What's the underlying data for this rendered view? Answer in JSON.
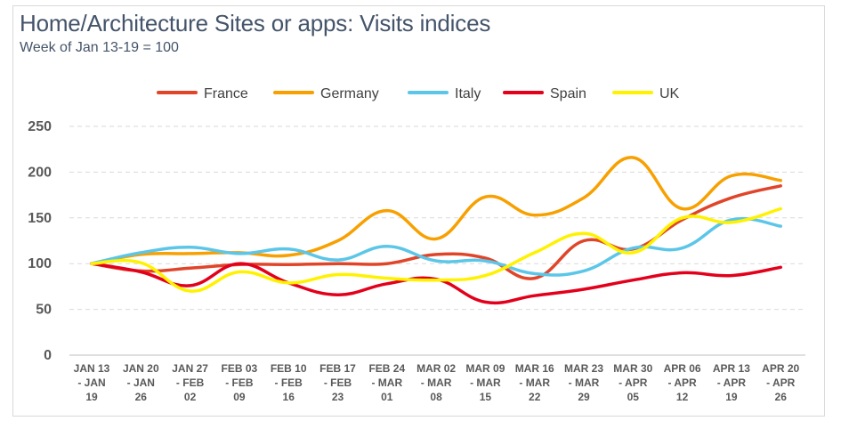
{
  "title": "Home/Architecture Sites or apps: Visits indices",
  "subtitle": "Week of Jan 13-19 = 100",
  "chart_data": {
    "type": "line",
    "title": "Home/Architecture Sites or apps: Visits indices",
    "subtitle": "Week of Jan 13-19 = 100",
    "xlabel": "",
    "ylabel": "",
    "ylim": [
      0,
      250
    ],
    "yticks": [
      0,
      50,
      100,
      150,
      200,
      250
    ],
    "grid": "horizontal dashed",
    "legend_position": "top",
    "smooth": true,
    "categories": [
      [
        "JAN 13",
        "- JAN",
        "19"
      ],
      [
        "JAN 20",
        "- JAN",
        "26"
      ],
      [
        "JAN 27",
        "- FEB",
        "02"
      ],
      [
        "FEB 03",
        "- FEB",
        "09"
      ],
      [
        "FEB 10",
        "- FEB",
        "16"
      ],
      [
        "FEB 17",
        "- FEB",
        "23"
      ],
      [
        "FEB 24",
        "- MAR",
        "01"
      ],
      [
        "MAR 02",
        "- MAR",
        "08"
      ],
      [
        "MAR 09",
        "- MAR",
        "15"
      ],
      [
        "MAR 16",
        "- MAR",
        "22"
      ],
      [
        "MAR 23",
        "- MAR",
        "29"
      ],
      [
        "MAR 30",
        "- APR",
        "05"
      ],
      [
        "APR 06",
        "- APR",
        "12"
      ],
      [
        "APR 13",
        "- APR",
        "19"
      ],
      [
        "APR 20",
        "- APR",
        "26"
      ]
    ],
    "series": [
      {
        "name": "France",
        "color": "#e0452a",
        "values": [
          100,
          92,
          95,
          99,
          99,
          100,
          100,
          110,
          106,
          84,
          125,
          116,
          148,
          172,
          185
        ]
      },
      {
        "name": "Germany",
        "color": "#f7a000",
        "values": [
          100,
          110,
          111,
          112,
          109,
          125,
          158,
          127,
          173,
          153,
          172,
          216,
          160,
          196,
          191
        ]
      },
      {
        "name": "Italy",
        "color": "#5bc6e8",
        "values": [
          100,
          112,
          118,
          111,
          116,
          104,
          119,
          103,
          103,
          89,
          92,
          117,
          117,
          148,
          141
        ]
      },
      {
        "name": "Spain",
        "color": "#e3001b",
        "values": [
          100,
          91,
          76,
          100,
          79,
          66,
          78,
          83,
          58,
          65,
          72,
          82,
          90,
          87,
          96
        ]
      },
      {
        "name": "UK",
        "color": "#fff200",
        "values": [
          100,
          101,
          70,
          91,
          79,
          88,
          84,
          82,
          87,
          112,
          133,
          112,
          150,
          145,
          160
        ]
      }
    ]
  }
}
